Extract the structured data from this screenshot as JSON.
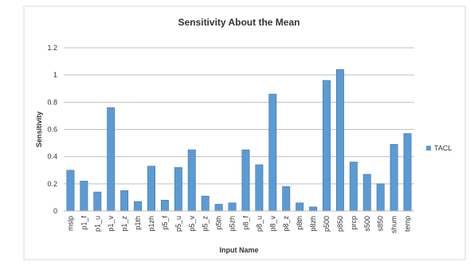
{
  "chart_data": {
    "type": "bar",
    "title": "Sensitivity About the Mean",
    "xlabel": "Input Name",
    "ylabel": "Sensitivity",
    "ylim": [
      0,
      1.2
    ],
    "yticks": [
      "0",
      "0.2",
      "0.4",
      "0.6",
      "0.8",
      "1",
      "1.2"
    ],
    "categories": [
      "mslp",
      "p1_f",
      "p1_u",
      "p1_v",
      "p1_z",
      "p1th",
      "p1zh",
      "p5_f",
      "p5_u",
      "p5_v",
      "p5_z",
      "p5th",
      "p5zh",
      "p8_f",
      "p8_u",
      "p8_v",
      "p8_z",
      "p8th",
      "p8zh",
      "p500",
      "p850",
      "prcp",
      "s500",
      "s850",
      "shum",
      "temp"
    ],
    "series": [
      {
        "name": "TACL",
        "color": "#5b9bd5",
        "values": [
          0.3,
          0.22,
          0.14,
          0.76,
          0.15,
          0.07,
          0.33,
          0.08,
          0.32,
          0.45,
          0.11,
          0.05,
          0.06,
          0.45,
          0.34,
          0.86,
          0.18,
          0.06,
          0.03,
          0.96,
          1.04,
          0.36,
          0.27,
          0.2,
          0.49,
          0.57
        ]
      }
    ],
    "grid": true,
    "legend_position": "right"
  }
}
